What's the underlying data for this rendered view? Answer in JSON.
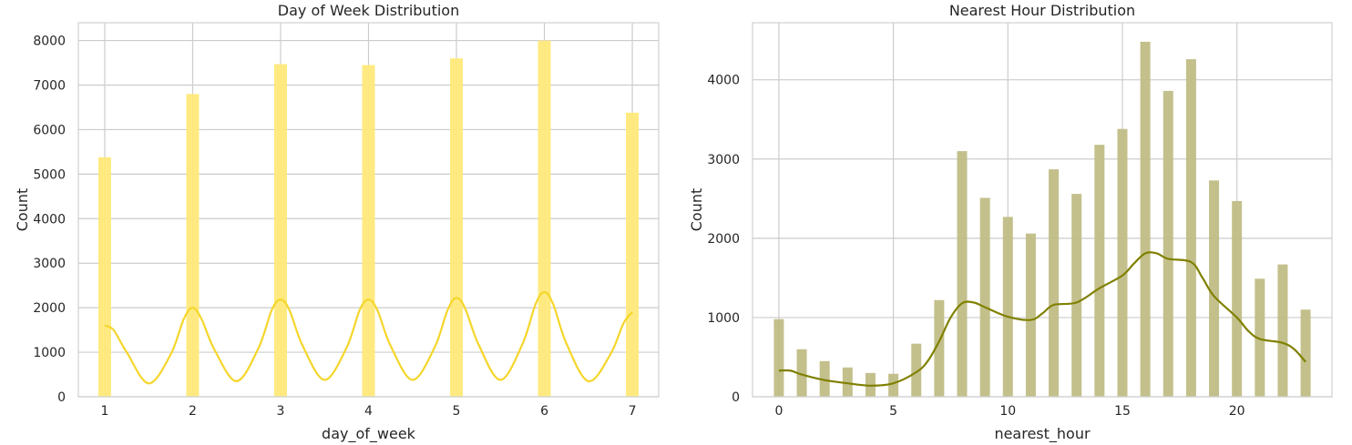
{
  "colors": {
    "dow_bar": "#FFE97A",
    "dow_kde": "#F5D62A",
    "hour_bar": "#C0BD86",
    "hour_kde": "#808000",
    "grid": "#CCCCCC",
    "frame": "#D0D0D0"
  },
  "chart_data": [
    {
      "type": "bar",
      "title": "Day of Week Distribution",
      "xlabel": "day_of_week",
      "ylabel": "Count",
      "xlim": [
        0.7,
        7.3
      ],
      "ylim": [
        0,
        8400
      ],
      "xticks": [
        1,
        2,
        3,
        4,
        5,
        6,
        7
      ],
      "yticks": [
        0,
        1000,
        2000,
        3000,
        4000,
        5000,
        6000,
        7000,
        8000
      ],
      "grid": true,
      "categories": [
        1,
        2,
        3,
        4,
        5,
        6,
        7
      ],
      "values": [
        5380,
        6800,
        7470,
        7450,
        7600,
        8000,
        6380
      ],
      "kde": {
        "x": [
          1.0,
          1.1,
          1.25,
          1.5,
          1.75,
          1.9,
          2.0,
          2.1,
          2.25,
          2.5,
          2.75,
          2.9,
          3.0,
          3.1,
          3.25,
          3.5,
          3.75,
          3.9,
          4.0,
          4.1,
          4.25,
          4.5,
          4.75,
          4.9,
          5.0,
          5.1,
          5.25,
          5.5,
          5.75,
          5.9,
          6.0,
          6.1,
          6.25,
          6.5,
          6.75,
          6.9,
          7.0
        ],
        "y": [
          1600,
          1500,
          1000,
          300,
          950,
          1750,
          2000,
          1750,
          1050,
          350,
          1100,
          1950,
          2180,
          1950,
          1150,
          380,
          1100,
          1950,
          2180,
          1950,
          1150,
          380,
          1100,
          1950,
          2220,
          1980,
          1180,
          380,
          1180,
          2080,
          2350,
          2080,
          1200,
          350,
          950,
          1650,
          1900
        ]
      }
    },
    {
      "type": "bar",
      "title": "Nearest Hour Distribution",
      "xlabel": "nearest_hour",
      "ylabel": "Count",
      "xlim": [
        -1.15,
        24.15
      ],
      "ylim": [
        0,
        4720
      ],
      "xticks": [
        0,
        5,
        10,
        15,
        20
      ],
      "yticks": [
        0,
        1000,
        2000,
        3000,
        4000
      ],
      "grid": true,
      "categories": [
        0,
        1,
        2,
        3,
        4,
        5,
        6,
        7,
        8,
        9,
        10,
        11,
        12,
        13,
        14,
        15,
        16,
        17,
        18,
        19,
        20,
        21,
        22,
        23
      ],
      "values": [
        980,
        600,
        450,
        370,
        300,
        290,
        670,
        1220,
        3100,
        2510,
        2270,
        2060,
        2870,
        2560,
        3180,
        3380,
        4480,
        3860,
        4260,
        2730,
        2470,
        1490,
        1670,
        1100
      ],
      "kde": {
        "x": [
          0,
          0.5,
          1,
          2,
          3,
          4,
          5,
          6,
          6.5,
          7,
          7.5,
          8,
          8.5,
          9,
          10,
          11,
          11.5,
          12,
          13,
          14,
          15,
          15.5,
          16,
          16.5,
          17,
          18,
          18.5,
          19,
          20,
          20.5,
          21,
          22,
          22.5,
          23
        ],
        "y": [
          330,
          330,
          280,
          210,
          170,
          140,
          170,
          310,
          450,
          700,
          1000,
          1180,
          1190,
          1130,
          1010,
          970,
          1050,
          1160,
          1190,
          1370,
          1530,
          1680,
          1810,
          1810,
          1740,
          1700,
          1500,
          1270,
          1000,
          830,
          730,
          680,
          600,
          440
        ]
      }
    }
  ]
}
